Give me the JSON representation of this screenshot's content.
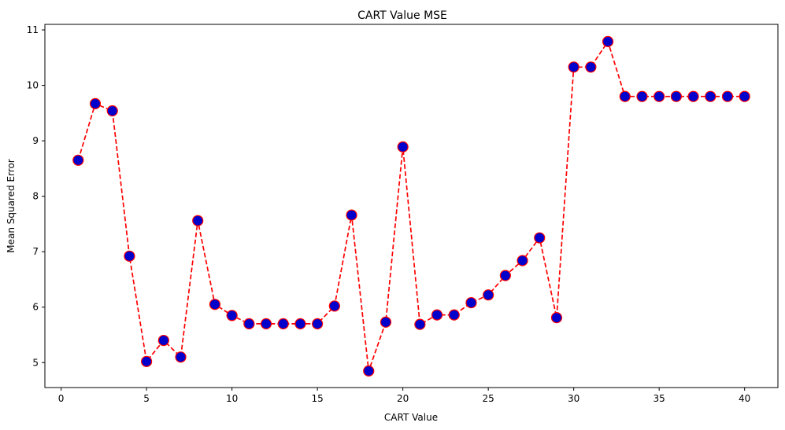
{
  "chart_data": {
    "type": "line",
    "title": "CART Value MSE",
    "xlabel": "CART Value",
    "ylabel": "Mean Squared Error",
    "xlim": [
      -0.95,
      41.95
    ],
    "ylim": [
      4.55,
      11.1
    ],
    "xticks": [
      0,
      5,
      10,
      15,
      20,
      25,
      30,
      35,
      40
    ],
    "yticks": [
      5,
      6,
      7,
      8,
      9,
      10,
      11
    ],
    "grid": false,
    "series": [
      {
        "x": [
          1,
          2,
          3,
          4,
          5,
          6,
          7,
          8,
          9,
          10,
          11,
          12,
          13,
          14,
          15,
          16,
          17,
          18,
          19,
          20,
          21,
          22,
          23,
          24,
          25,
          26,
          27,
          28,
          29,
          30,
          31,
          32,
          33,
          34,
          35,
          36,
          37,
          38,
          39,
          40
        ],
        "values": [
          8.65,
          9.67,
          9.54,
          6.92,
          5.02,
          5.4,
          5.1,
          7.56,
          6.05,
          5.85,
          5.7,
          5.7,
          5.7,
          5.7,
          5.7,
          6.02,
          7.66,
          4.85,
          5.73,
          8.89,
          5.69,
          5.86,
          5.86,
          6.08,
          6.22,
          6.57,
          6.84,
          7.25,
          5.81,
          10.33,
          10.33,
          10.79,
          9.8,
          9.8,
          9.8,
          9.8,
          9.8,
          9.8,
          9.8,
          9.8
        ],
        "line_color": "#ff0000",
        "line_style": "dashed",
        "marker": "circle",
        "marker_face_color": "#0000cc",
        "marker_edge_color": "#ff0000"
      }
    ]
  }
}
